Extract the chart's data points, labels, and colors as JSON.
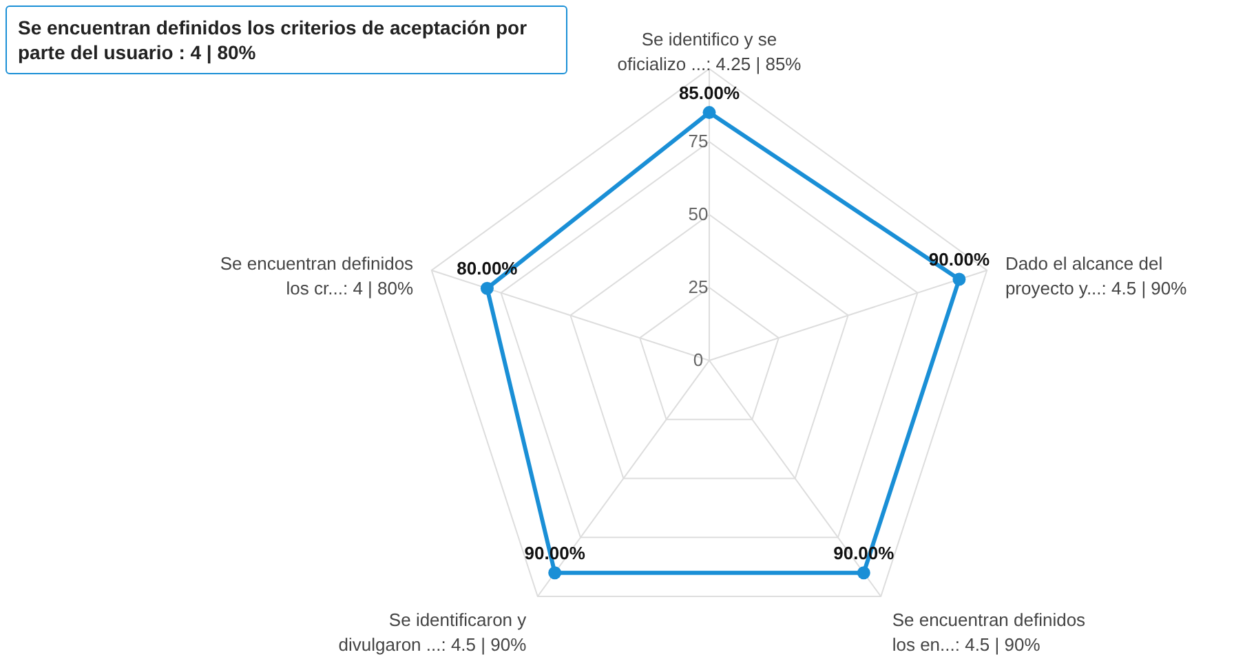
{
  "chart_data": {
    "type": "radar",
    "categories": [
      "Se identifico y se oficializo ...: 4.25 | 85%",
      "Dado el alcance del proyecto y...: 4.5 | 90%",
      "Se encuentran definidos los en...: 4.5 | 90%",
      "Se identificaron y divulgaron ...: 4.5 | 90%",
      "Se encuentran definidos los cr...: 4 | 80%"
    ],
    "series": [
      {
        "color": "#1a8fd6",
        "values": [
          85,
          90,
          90,
          90,
          80
        ],
        "value_labels": [
          "85.00%",
          "90.00%",
          "90.00%",
          "90.00%",
          "80.00%"
        ]
      }
    ],
    "ylim": [
      0,
      100
    ],
    "yticks": [
      0,
      25,
      50,
      75
    ],
    "grid": true,
    "marker": "circle",
    "annotations": [
      "Se encuentran definidos los criterios de aceptación por parte del usuario : 4 | 80%"
    ]
  }
}
